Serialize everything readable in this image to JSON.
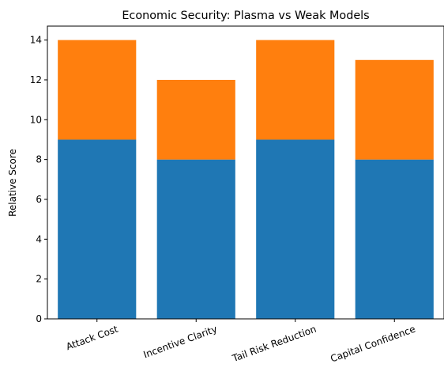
{
  "chart_data": {
    "type": "bar",
    "stacked": true,
    "title": "Economic Security: Plasma vs Weak Models",
    "xlabel": "",
    "ylabel": "Relative Score",
    "categories": [
      "Attack Cost",
      "Incentive Clarity",
      "Tail Risk Reduction",
      "Capital Confidence"
    ],
    "series": [
      {
        "values": [
          9,
          8,
          9,
          8
        ],
        "color": "#1f77b4"
      },
      {
        "values": [
          5,
          4,
          5,
          5
        ],
        "color": "#ff7f0e"
      }
    ],
    "ylim": [
      0,
      14.7
    ],
    "yticks": [
      "0",
      "2",
      "4",
      "6",
      "8",
      "10",
      "12",
      "14"
    ],
    "grid": false,
    "legend": "none"
  }
}
